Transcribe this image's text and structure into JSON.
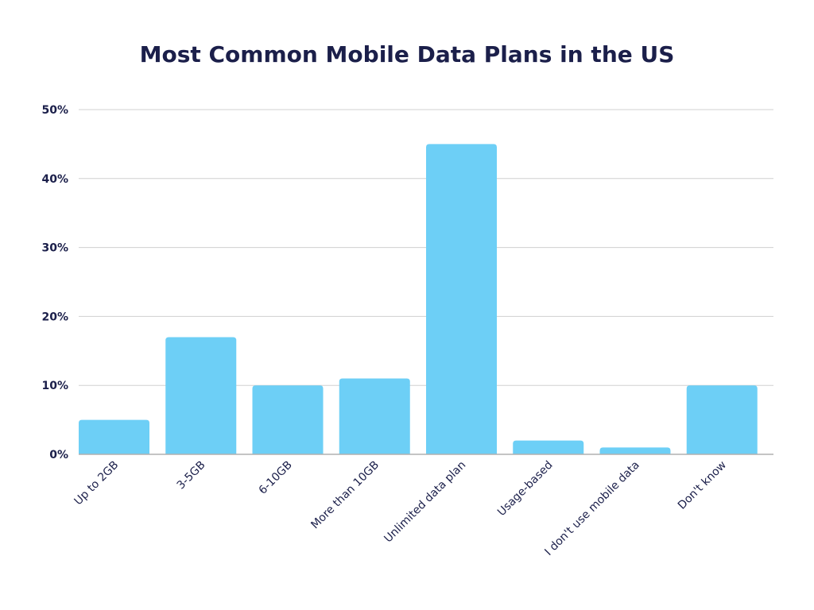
{
  "chart_data": {
    "type": "bar",
    "title": "Most Common Mobile Data Plans in the US",
    "categories": [
      "Up to 2GB",
      "3-5GB",
      "6-10GB",
      "More than 10GB",
      "Unlimited data plan",
      "Usage-based",
      "I don't use mobile data",
      "Don't know"
    ],
    "values": [
      5,
      17,
      10,
      11,
      45,
      2,
      1,
      10
    ],
    "unit": "%",
    "ylim": [
      0,
      50
    ],
    "yticks": [
      "0%",
      "10%",
      "20%",
      "30%",
      "40%",
      "50%"
    ],
    "xlabel": "",
    "ylabel": "",
    "grid": true,
    "legend": "none",
    "bar_color": "#6dcff6",
    "text_color": "#1b1f4a"
  }
}
